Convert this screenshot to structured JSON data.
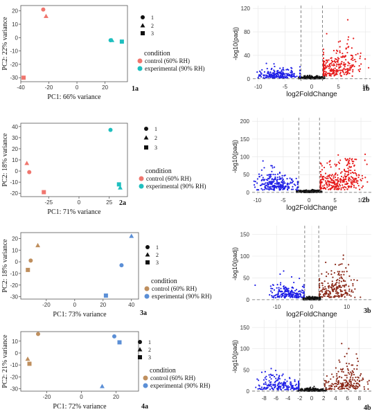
{
  "chart_data": [
    {
      "id": "1a",
      "type": "scatter",
      "panel_label": "1a",
      "xlabel": "PC1: 66% variance",
      "ylabel": "PC2: 22% variance",
      "xlim": [
        -40,
        36
      ],
      "ylim": [
        -33,
        24
      ],
      "xticks": [
        -40,
        -20,
        0,
        20
      ],
      "yticks": [
        -30,
        -20,
        -10,
        0,
        10,
        20
      ],
      "legend_title": "condition",
      "shape_legend": [
        "1",
        "2",
        "3"
      ],
      "series": [
        {
          "name": "control (60% RH)",
          "color": "#f0766e",
          "points": [
            {
              "x": -24,
              "y": 21,
              "shape": "circle"
            },
            {
              "x": -22,
              "y": 16,
              "shape": "triangle"
            },
            {
              "x": -38,
              "y": -30,
              "shape": "square"
            }
          ]
        },
        {
          "name": "experimental (90% RH)",
          "color": "#1fbfbf",
          "points": [
            {
              "x": 24,
              "y": -2,
              "shape": "circle"
            },
            {
              "x": 25,
              "y": -2,
              "shape": "triangle"
            },
            {
              "x": 32,
              "y": -3,
              "shape": "square"
            }
          ]
        }
      ]
    },
    {
      "id": "2a",
      "type": "scatter",
      "panel_label": "2a",
      "xlabel": "PC1: 71% variance",
      "ylabel": "PC2: 18% variance",
      "xlim": [
        -48,
        40
      ],
      "ylim": [
        -23,
        43
      ],
      "xticks": [
        -25,
        0,
        25
      ],
      "yticks": [
        -20,
        -10,
        0,
        10,
        20,
        30,
        40
      ],
      "legend_title": "condition",
      "shape_legend": [
        "1",
        "2",
        "3"
      ],
      "series": [
        {
          "name": "control (60% RH)",
          "color": "#f0766e",
          "points": [
            {
              "x": -41,
              "y": -1,
              "shape": "circle"
            },
            {
              "x": -43,
              "y": 7,
              "shape": "triangle"
            },
            {
              "x": -29,
              "y": -19,
              "shape": "square"
            }
          ]
        },
        {
          "name": "experimental (90% RH)",
          "color": "#1fbfbf",
          "points": [
            {
              "x": 26,
              "y": 37,
              "shape": "circle"
            },
            {
              "x": 34,
              "y": -15,
              "shape": "triangle"
            },
            {
              "x": 33,
              "y": -12,
              "shape": "square"
            }
          ]
        }
      ]
    },
    {
      "id": "3a",
      "type": "scatter",
      "panel_label": "3a",
      "xlabel": "PC1: 73% variance",
      "ylabel": "PC2: 18% variance",
      "xlim": [
        -38,
        45
      ],
      "ylim": [
        -32,
        25
      ],
      "xticks": [
        -20,
        0,
        20,
        40
      ],
      "yticks": [
        -30,
        -20,
        -10,
        0,
        10,
        20
      ],
      "legend_title": "condition",
      "shape_legend": [
        "1",
        "2",
        "3"
      ],
      "series": [
        {
          "name": "control (60% RH)",
          "color": "#bf8f5e",
          "points": [
            {
              "x": -31,
              "y": 1,
              "shape": "circle"
            },
            {
              "x": -26,
              "y": 14,
              "shape": "triangle"
            },
            {
              "x": -33,
              "y": -7,
              "shape": "square"
            }
          ]
        },
        {
          "name": "experimental (90% RH)",
          "color": "#5b8fd6",
          "points": [
            {
              "x": 33,
              "y": -3,
              "shape": "circle"
            },
            {
              "x": 40,
              "y": 22,
              "shape": "triangle"
            },
            {
              "x": 22,
              "y": -29,
              "shape": "square"
            }
          ]
        }
      ]
    },
    {
      "id": "4a",
      "type": "scatter",
      "panel_label": "4a",
      "xlabel": "PC1: 72% variance",
      "ylabel": "PC2: 21% variance",
      "xlim": [
        -35,
        33
      ],
      "ylim": [
        -32,
        18
      ],
      "xticks": [
        -20,
        0,
        20
      ],
      "yticks": [
        -30,
        -20,
        -10,
        0,
        10
      ],
      "legend_title": "condition",
      "shape_legend": [
        "1",
        "2",
        "3"
      ],
      "series": [
        {
          "name": "control (60% RH)",
          "color": "#bf8f5e",
          "points": [
            {
              "x": -25,
              "y": 16,
              "shape": "circle"
            },
            {
              "x": -31,
              "y": -5,
              "shape": "triangle"
            },
            {
              "x": -30,
              "y": -9,
              "shape": "square"
            }
          ]
        },
        {
          "name": "experimental (90% RH)",
          "color": "#5b8fd6",
          "points": [
            {
              "x": 19,
              "y": 14,
              "shape": "circle"
            },
            {
              "x": 12,
              "y": -28,
              "shape": "triangle"
            },
            {
              "x": 22,
              "y": 9,
              "shape": "square"
            }
          ]
        }
      ]
    },
    {
      "id": "1b",
      "type": "scatter",
      "panel_label": "1b",
      "grid": true,
      "xlabel": "log2FoldChange",
      "ylabel": "-log10(padj)",
      "xlim": [
        -11,
        11
      ],
      "ylim": [
        -5,
        125
      ],
      "xticks": [
        -10,
        -5,
        0,
        5,
        10
      ],
      "yticks": [
        0,
        40,
        80,
        120
      ],
      "thresholds": {
        "x": [
          -2,
          2
        ],
        "y": 0
      },
      "colors": {
        "down": "#1f1fe6",
        "ns": "#111111",
        "up": "#e61919"
      },
      "clusters": {
        "down": [
          [
            -6,
            10,
            2.4,
            7,
            160
          ],
          [
            -7,
            3,
            2,
            3,
            50
          ]
        ],
        "ns": [
          [
            0,
            2,
            1.2,
            2.2,
            220
          ]
        ],
        "up": [
          [
            4,
            18,
            2.1,
            18,
            200
          ],
          [
            7,
            60,
            1.4,
            30,
            60
          ]
        ]
      }
    },
    {
      "id": "2b",
      "type": "scatter",
      "panel_label": "2b",
      "grid": true,
      "xlabel": "log2FoldChange",
      "ylabel": "-log10(padj)",
      "xlim": [
        -11,
        12
      ],
      "ylim": [
        -8,
        210
      ],
      "xticks": [
        -10,
        -5,
        0,
        5,
        10
      ],
      "yticks": [
        0,
        50,
        100,
        150,
        200
      ],
      "thresholds": {
        "x": [
          -2,
          2
        ],
        "y": 0
      },
      "colors": {
        "down": "#1f1fe6",
        "ns": "#111111",
        "up": "#e61919"
      },
      "clusters": {
        "down": [
          [
            -6,
            25,
            2.3,
            20,
            190
          ],
          [
            -7,
            60,
            1.5,
            25,
            50
          ]
        ],
        "ns": [
          [
            0,
            3,
            1.2,
            3,
            240
          ]
        ],
        "up": [
          [
            5,
            30,
            2.3,
            30,
            230
          ],
          [
            8,
            100,
            1.5,
            45,
            70
          ]
        ]
      }
    },
    {
      "id": "3b",
      "type": "scatter",
      "panel_label": "3b",
      "grid": true,
      "xlabel": "log2FoldChange",
      "ylabel": "-log10(padj)",
      "xlim": [
        -17,
        17
      ],
      "ylim": [
        -5,
        170
      ],
      "xticks": [
        -10,
        0,
        10
      ],
      "yticks": [
        0,
        50,
        100,
        150
      ],
      "thresholds": {
        "x": [
          -2,
          2
        ],
        "y": 0
      },
      "colors": {
        "down": "#1f1fe6",
        "ns": "#111111",
        "up": "#8b2a1a"
      },
      "clusters": {
        "down": [
          [
            -6,
            15,
            3,
            14,
            150
          ],
          [
            -7,
            45,
            2,
            22,
            40
          ]
        ],
        "ns": [
          [
            0,
            3,
            1.6,
            3,
            220
          ]
        ],
        "up": [
          [
            6,
            20,
            3,
            18,
            140
          ],
          [
            8,
            80,
            2,
            40,
            60
          ]
        ]
      }
    },
    {
      "id": "4b",
      "type": "scatter",
      "panel_label": "4b",
      "grid": true,
      "xlabel": "",
      "ylabel": "-log10(padj)",
      "xlim": [
        -10,
        10
      ],
      "ylim": [
        -5,
        168
      ],
      "xticks": [
        -8,
        -6,
        -4,
        -2,
        0,
        2,
        4,
        6,
        8
      ],
      "yticks": [
        0,
        50,
        100,
        150
      ],
      "thresholds": {
        "x": [
          -2,
          2
        ],
        "y": 0
      },
      "colors": {
        "down": "#1f1fe6",
        "ns": "#111111",
        "up": "#8b2a1a"
      },
      "clusters": {
        "down": [
          [
            -5,
            12,
            2,
            12,
            150
          ],
          [
            -6,
            40,
            1.5,
            20,
            40
          ]
        ],
        "ns": [
          [
            0,
            3,
            1.1,
            3,
            220
          ]
        ],
        "up": [
          [
            5,
            15,
            1.8,
            15,
            130
          ],
          [
            6.5,
            70,
            1.3,
            40,
            60
          ]
        ]
      }
    }
  ]
}
